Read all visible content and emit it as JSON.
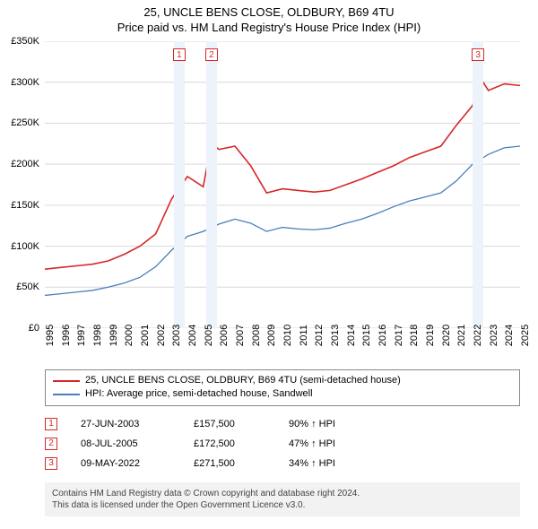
{
  "title_line1": "25, UNCLE BENS CLOSE, OLDBURY, B69 4TU",
  "title_line2": "Price paid vs. HM Land Registry's House Price Index (HPI)",
  "chart": {
    "type": "line",
    "background_color": "#ffffff",
    "grid_color": "#d9d9d9",
    "ylim": [
      0,
      350000
    ],
    "ytick_step": 50000,
    "y_labels": [
      "£0",
      "£50K",
      "£100K",
      "£150K",
      "£200K",
      "£250K",
      "£300K",
      "£350K"
    ],
    "xlim": [
      1995,
      2025
    ],
    "x_labels": [
      "1995",
      "1996",
      "1997",
      "1998",
      "1999",
      "2000",
      "2001",
      "2002",
      "2003",
      "2004",
      "2005",
      "2006",
      "2007",
      "2008",
      "2009",
      "2010",
      "2011",
      "2012",
      "2013",
      "2014",
      "2015",
      "2016",
      "2017",
      "2018",
      "2019",
      "2020",
      "2021",
      "2022",
      "2023",
      "2024",
      "2025"
    ],
    "series": [
      {
        "name": "price_paid",
        "color": "#d62728",
        "width": 1.6,
        "points": [
          [
            1995,
            72000
          ],
          [
            1996,
            74000
          ],
          [
            1997,
            76000
          ],
          [
            1998,
            78000
          ],
          [
            1999,
            82000
          ],
          [
            2000,
            90000
          ],
          [
            2001,
            100000
          ],
          [
            2002,
            115000
          ],
          [
            2003,
            157500
          ],
          [
            2004,
            185000
          ],
          [
            2005,
            172500
          ],
          [
            2005.5,
            225000
          ],
          [
            2006,
            218000
          ],
          [
            2007,
            222000
          ],
          [
            2008,
            198000
          ],
          [
            2009,
            165000
          ],
          [
            2010,
            170000
          ],
          [
            2011,
            168000
          ],
          [
            2012,
            166000
          ],
          [
            2013,
            168000
          ],
          [
            2014,
            175000
          ],
          [
            2015,
            182000
          ],
          [
            2016,
            190000
          ],
          [
            2017,
            198000
          ],
          [
            2018,
            208000
          ],
          [
            2019,
            215000
          ],
          [
            2020,
            222000
          ],
          [
            2021,
            248000
          ],
          [
            2022,
            271500
          ],
          [
            2022.5,
            305000
          ],
          [
            2023,
            290000
          ],
          [
            2024,
            298000
          ],
          [
            2025,
            296000
          ]
        ]
      },
      {
        "name": "hpi",
        "color": "#4a7ebb",
        "width": 1.3,
        "points": [
          [
            1995,
            40000
          ],
          [
            1996,
            42000
          ],
          [
            1997,
            44000
          ],
          [
            1998,
            46000
          ],
          [
            1999,
            50000
          ],
          [
            2000,
            55000
          ],
          [
            2001,
            62000
          ],
          [
            2002,
            75000
          ],
          [
            2003,
            95000
          ],
          [
            2004,
            112000
          ],
          [
            2005,
            118000
          ],
          [
            2006,
            127000
          ],
          [
            2007,
            133000
          ],
          [
            2008,
            128000
          ],
          [
            2009,
            118000
          ],
          [
            2010,
            123000
          ],
          [
            2011,
            121000
          ],
          [
            2012,
            120000
          ],
          [
            2013,
            122000
          ],
          [
            2014,
            128000
          ],
          [
            2015,
            133000
          ],
          [
            2016,
            140000
          ],
          [
            2017,
            148000
          ],
          [
            2018,
            155000
          ],
          [
            2019,
            160000
          ],
          [
            2020,
            165000
          ],
          [
            2021,
            180000
          ],
          [
            2022,
            200000
          ],
          [
            2023,
            212000
          ],
          [
            2024,
            220000
          ],
          [
            2025,
            222000
          ]
        ]
      }
    ],
    "sale_markers": [
      {
        "n": "1",
        "x": 2003.48,
        "y": 157500,
        "color": "#d62728"
      },
      {
        "n": "2",
        "x": 2005.52,
        "y": 172500,
        "color": "#d62728"
      },
      {
        "n": "3",
        "x": 2022.35,
        "y": 271500,
        "color": "#d62728"
      }
    ],
    "highlight_bands": [
      {
        "x": 2003.48,
        "color": "#edf3fa",
        "line_color": "#d62728"
      },
      {
        "x": 2005.52,
        "color": "#edf3fa",
        "line_color": "#d62728"
      },
      {
        "x": 2022.35,
        "color": "#edf3fa",
        "line_color": "#d62728"
      }
    ]
  },
  "legend": {
    "items": [
      {
        "color": "#d62728",
        "label": "25, UNCLE BENS CLOSE, OLDBURY, B69 4TU (semi-detached house)"
      },
      {
        "color": "#4a7ebb",
        "label": "HPI: Average price, semi-detached house, Sandwell"
      }
    ]
  },
  "sales": [
    {
      "n": "1",
      "date": "27-JUN-2003",
      "price": "£157,500",
      "delta": "90% ↑ HPI",
      "color": "#d62728"
    },
    {
      "n": "2",
      "date": "08-JUL-2005",
      "price": "£172,500",
      "delta": "47% ↑ HPI",
      "color": "#d62728"
    },
    {
      "n": "3",
      "date": "09-MAY-2022",
      "price": "£271,500",
      "delta": "34% ↑ HPI",
      "color": "#d62728"
    }
  ],
  "footer_line1": "Contains HM Land Registry data © Crown copyright and database right 2024.",
  "footer_line2": "This data is licensed under the Open Government Licence v3.0."
}
